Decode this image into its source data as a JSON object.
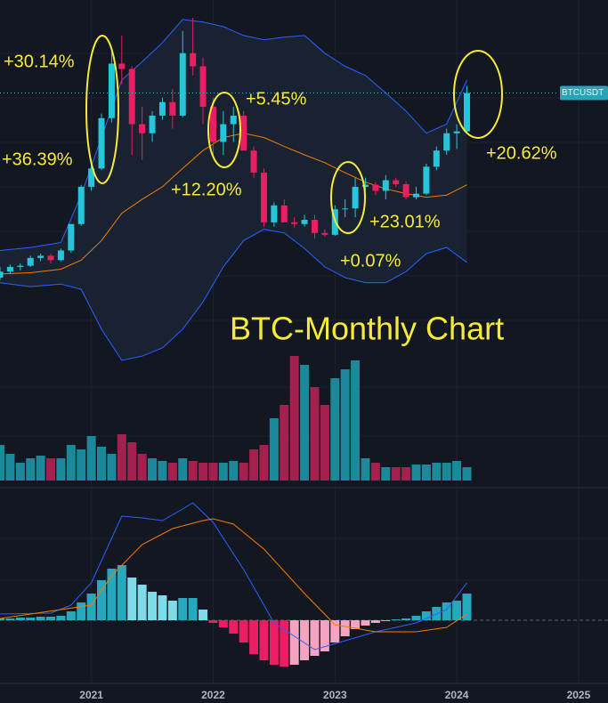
{
  "chart_data": [
    {
      "type": "candlestick",
      "title": "BTC-Monthly Chart",
      "price_label": "BTCUSDT",
      "annotations": [
        "+30.14%",
        "+36.39%",
        "+5.45%",
        "+12.20%",
        "+23.01%",
        "+0.07%",
        "+20.62%"
      ],
      "x": [
        0,
        1,
        2,
        3,
        4,
        5,
        6,
        7,
        8,
        9,
        10,
        11,
        12,
        13,
        14,
        15,
        16,
        17,
        18,
        19,
        20,
        21,
        22,
        23,
        24,
        25,
        26,
        27,
        28,
        29,
        30,
        31,
        32,
        33,
        34,
        35,
        36,
        37,
        38,
        39,
        40,
        41,
        42,
        43,
        44,
        45,
        46
      ],
      "open": [
        11900,
        12400,
        12800,
        12900,
        13600,
        13800,
        13400,
        14300,
        17100,
        22000,
        24900,
        35000,
        50600,
        48800,
        33600,
        31600,
        35600,
        39000,
        35600,
        54300,
        49700,
        37800,
        29800,
        33600,
        35600,
        28100,
        24200,
        17300,
        19400,
        17300,
        17100,
        17600,
        16100,
        15900,
        18900,
        19000,
        22000,
        22300,
        21400,
        23000,
        22400,
        20500,
        21000,
        25200,
        28100,
        31600,
        32000
      ],
      "high": [
        12800,
        13000,
        13100,
        13800,
        14000,
        14000,
        14500,
        17100,
        22300,
        26400,
        36100,
        55800,
        61200,
        49700,
        37800,
        36700,
        40200,
        42700,
        63100,
        69000,
        52700,
        40200,
        36700,
        37800,
        36700,
        28900,
        24900,
        19800,
        20200,
        17900,
        18200,
        18200,
        16500,
        19400,
        20200,
        23400,
        23400,
        22700,
        23800,
        23400,
        22800,
        22000,
        25700,
        28900,
        32600,
        33600,
        43500
      ],
      "low": [
        11700,
        12200,
        12500,
        12800,
        13300,
        13100,
        13300,
        14100,
        16900,
        21400,
        24600,
        34000,
        44000,
        27300,
        26400,
        29800,
        34600,
        32600,
        35200,
        46700,
        33600,
        27300,
        27300,
        29800,
        28100,
        23400,
        16800,
        16800,
        17300,
        16700,
        16800,
        15500,
        15700,
        15800,
        17900,
        17900,
        21400,
        20800,
        20200,
        22000,
        20200,
        20200,
        20800,
        24600,
        27300,
        28400,
        31600
      ],
      "close": [
        12400,
        12800,
        12900,
        13600,
        13800,
        13400,
        14300,
        17100,
        22000,
        24900,
        35000,
        50600,
        48800,
        33600,
        31600,
        35600,
        39000,
        35600,
        54300,
        49700,
        37800,
        29800,
        33600,
        35600,
        28100,
        24200,
        17300,
        19400,
        17300,
        17100,
        17600,
        16100,
        15900,
        18900,
        19000,
        22000,
        22300,
        21400,
        23000,
        22400,
        20500,
        21000,
        25200,
        28100,
        31600,
        32000,
        41500
      ],
      "up_color": "#26c6da",
      "down_color": "#e91e63",
      "bands": {
        "x": [
          0,
          3,
          6,
          8,
          10,
          12,
          14,
          16,
          18,
          20,
          22,
          24,
          26,
          28,
          30,
          32,
          34,
          36,
          38,
          40,
          42,
          44,
          46
        ],
        "fill": "#1c2536",
        "series": [
          {
            "color": "#2962ff",
            "values": [
              14300,
              14600,
              15100,
              20800,
              30700,
              45300,
              51200,
              58300,
              68200,
              67000,
              65000,
              61200,
              59400,
              60500,
              61200,
              54300,
              49700,
              46700,
              41500,
              36700,
              31600,
              33600,
              45300
            ]
          },
          {
            "color": "#2962ff",
            "values": [
              11500,
              11200,
              11400,
              11000,
              8400,
              6800,
              7000,
              7400,
              8400,
              10100,
              12800,
              15300,
              16500,
              16100,
              14500,
              12800,
              11900,
              11500,
              11500,
              12400,
              14000,
              14600,
              13200
            ]
          },
          {
            "color": "#f57c00",
            "values": [
              12200,
              12300,
              12600,
              13400,
              15300,
              18400,
              20200,
              22000,
              24900,
              28100,
              30700,
              31600,
              30700,
              28900,
              27300,
              25900,
              24200,
              22700,
              21700,
              21000,
              20500,
              20800,
              22300
            ]
          }
        ]
      },
      "ylim": [
        6600,
        77800
      ],
      "log_scale": true,
      "xlim": [
        0,
        59.9
      ],
      "xticks": [
        {
          "value": 9,
          "label": "2021"
        },
        {
          "value": 21,
          "label": "2022"
        },
        {
          "value": 33,
          "label": "2023"
        },
        {
          "value": 45,
          "label": "2024"
        },
        {
          "value": 57,
          "label": "2025"
        }
      ],
      "grid": true
    },
    {
      "type": "volume",
      "values": [
        40,
        30,
        20,
        25,
        28,
        25,
        25,
        40,
        35,
        50,
        38,
        30,
        52,
        43,
        30,
        25,
        22,
        20,
        25,
        22,
        20,
        20,
        20,
        22,
        20,
        35,
        40,
        70,
        85,
        140,
        130,
        105,
        85,
        115,
        125,
        135,
        25,
        20,
        15,
        15,
        15,
        18,
        18,
        20,
        20,
        22,
        15
      ],
      "up_color": "#1a8a9b",
      "down_color": "#a3204f",
      "ylim": [
        0,
        140
      ]
    },
    {
      "type": "macd",
      "values": [
        2,
        2,
        3,
        3,
        4,
        4,
        5,
        10,
        20,
        30,
        45,
        58,
        62,
        48,
        40,
        32,
        28,
        22,
        25,
        25,
        12,
        -3,
        -8,
        -15,
        -25,
        -38,
        -45,
        -50,
        -52,
        -50,
        -45,
        -40,
        -35,
        -25,
        -18,
        -10,
        -6,
        -3,
        -1,
        1,
        2,
        5,
        10,
        15,
        20,
        22,
        30
      ],
      "colors": [
        "#26a9bd",
        "#7fdbe8",
        "#e91e63",
        "#f4a3c0"
      ],
      "lines": [
        {
          "color": "#2962ff",
          "x": [
            0,
            5,
            7,
            9,
            10,
            12,
            14,
            16,
            18,
            19,
            21,
            24,
            27,
            31,
            34,
            37,
            41,
            44,
            46
          ],
          "values": [
            7,
            8,
            17,
            42,
            67,
            117,
            115,
            112,
            125,
            132,
            110,
            57,
            -3,
            -33,
            -23,
            -13,
            -3,
            12,
            42
          ]
        },
        {
          "color": "#f57c00",
          "x": [
            0,
            9,
            11,
            14,
            17,
            20,
            21,
            23,
            26,
            30,
            33,
            37,
            41,
            44,
            46
          ],
          "values": [
            2,
            17,
            50,
            85,
            103,
            112,
            114,
            108,
            80,
            30,
            -5,
            -13,
            -13,
            -8,
            7
          ]
        }
      ],
      "ylim": [
        -83,
        137
      ]
    }
  ]
}
